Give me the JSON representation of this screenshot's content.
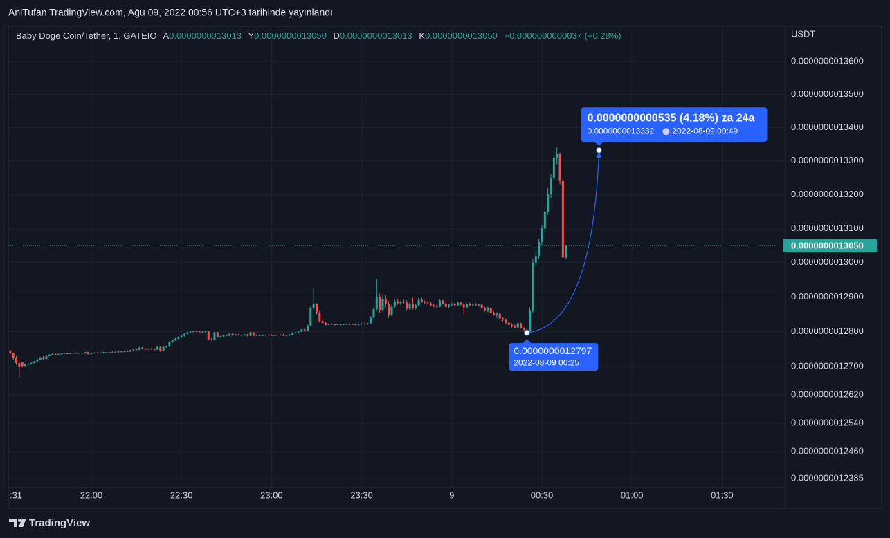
{
  "header": {
    "title": "AnlTufan TradingView.com, Ağu 09, 2022 00:56 UTC+3 tarihinde yayınlandı"
  },
  "legend": {
    "symbol": "Baby Doge Coin/Tether, 1, GATEIO",
    "ohlc": [
      {
        "key": "A",
        "value": "0.0000000013013"
      },
      {
        "key": "Y",
        "value": "0.0000000013050"
      },
      {
        "key": "D",
        "value": "0.0000000013013"
      },
      {
        "key": "K",
        "value": "0.0000000013050"
      }
    ],
    "change": "+0.0000000000037 (+0.28%)"
  },
  "footer": {
    "brand": "TradingView"
  },
  "chart_data": {
    "type": "candlestick",
    "y_unit": "USDT",
    "log_scale": true,
    "grid": true,
    "up_color": "#26a69a",
    "down_color": "#ef5350",
    "ylim": [
      1.236e-09,
      1.3708e-09
    ],
    "yticks": [
      {
        "value": 1.36e-09,
        "label": "0.0000000013600"
      },
      {
        "value": 1.35e-09,
        "label": "0.0000000013500"
      },
      {
        "value": 1.34e-09,
        "label": "0.0000000013400"
      },
      {
        "value": 1.33e-09,
        "label": "0.0000000013300"
      },
      {
        "value": 1.32e-09,
        "label": "0.0000000013200"
      },
      {
        "value": 1.31e-09,
        "label": "0.0000000013100"
      },
      {
        "value": 1.3e-09,
        "label": "0.0000000013000"
      },
      {
        "value": 1.29e-09,
        "label": "0.0000000012900"
      },
      {
        "value": 1.28e-09,
        "label": "0.0000000012800"
      },
      {
        "value": 1.27e-09,
        "label": "0.0000000012700"
      },
      {
        "value": 1.262e-09,
        "label": "0.0000000012620"
      },
      {
        "value": 1.254e-09,
        "label": "0.0000000012540"
      },
      {
        "value": 1.246e-09,
        "label": "0.0000000012460"
      },
      {
        "value": 1.2385e-09,
        "label": "0.0000000012385"
      }
    ],
    "xticks": [
      {
        "value": "21:31",
        "label": ":31"
      },
      "22:00",
      "22:30",
      "23:00",
      "23:30",
      {
        "value": "00:00",
        "label": "9"
      },
      "00:30",
      "01:00",
      "01:30"
    ],
    "last_price": {
      "value": 1.305e-09,
      "label": "0.0000000013050"
    },
    "annotation": {
      "change": "0.0000000000535 (4.18%) za 24a",
      "start": {
        "value": 1.2797e-09,
        "label": "0.0000000012797",
        "time": "2022-08-09 00:25"
      },
      "end": {
        "value": 1.3332e-09,
        "label": "0.0000000013332",
        "time": "2022-08-09  00:49"
      }
    },
    "x": [
      "21:33",
      "21:34",
      "21:35",
      "21:36",
      "21:37",
      "21:38",
      "21:39",
      "21:40",
      "21:41",
      "21:42",
      "21:43",
      "21:44",
      "21:45",
      "21:46",
      "21:47",
      "21:48",
      "21:49",
      "21:50",
      "21:51",
      "21:52",
      "21:53",
      "21:54",
      "21:55",
      "21:56",
      "21:57",
      "21:58",
      "21:59",
      "22:00",
      "22:01",
      "22:02",
      "22:03",
      "22:04",
      "22:05",
      "22:06",
      "22:07",
      "22:08",
      "22:09",
      "22:10",
      "22:11",
      "22:12",
      "22:13",
      "22:14",
      "22:15",
      "22:16",
      "22:17",
      "22:18",
      "22:19",
      "22:20",
      "22:21",
      "22:22",
      "22:23",
      "22:24",
      "22:25",
      "22:26",
      "22:27",
      "22:28",
      "22:29",
      "22:30",
      "22:31",
      "22:32",
      "22:33",
      "22:34",
      "22:35",
      "22:36",
      "22:37",
      "22:38",
      "22:39",
      "22:40",
      "22:41",
      "22:42",
      "22:43",
      "22:44",
      "22:45",
      "22:46",
      "22:47",
      "22:48",
      "22:49",
      "22:50",
      "22:51",
      "22:52",
      "22:53",
      "22:54",
      "22:55",
      "22:56",
      "22:57",
      "22:58",
      "22:59",
      "23:00",
      "23:01",
      "23:02",
      "23:03",
      "23:04",
      "23:05",
      "23:06",
      "23:07",
      "23:08",
      "23:09",
      "23:10",
      "23:11",
      "23:12",
      "23:13",
      "23:14",
      "23:15",
      "23:16",
      "23:17",
      "23:18",
      "23:19",
      "23:20",
      "23:21",
      "23:22",
      "23:23",
      "23:24",
      "23:25",
      "23:26",
      "23:27",
      "23:28",
      "23:29",
      "23:30",
      "23:31",
      "23:32",
      "23:33",
      "23:34",
      "23:35",
      "23:36",
      "23:37",
      "23:38",
      "23:39",
      "23:40",
      "23:41",
      "23:42",
      "23:43",
      "23:44",
      "23:45",
      "23:46",
      "23:47",
      "23:48",
      "23:49",
      "23:50",
      "23:51",
      "23:52",
      "23:53",
      "23:54",
      "23:55",
      "23:56",
      "23:57",
      "23:58",
      "23:59",
      "00:00",
      "00:01",
      "00:02",
      "00:03",
      "00:04",
      "00:05",
      "00:06",
      "00:07",
      "00:08",
      "00:09",
      "00:10",
      "00:11",
      "00:12",
      "00:13",
      "00:14",
      "00:15",
      "00:16",
      "00:17",
      "00:18",
      "00:19",
      "00:20",
      "00:21",
      "00:22",
      "00:23",
      "00:24",
      "00:25",
      "00:26",
      "00:27",
      "00:28",
      "00:29",
      "00:30",
      "00:31",
      "00:32",
      "00:33",
      "00:34",
      "00:35",
      "00:36",
      "00:37",
      "00:38"
    ],
    "open": [
      1.2745e-09,
      1.2738e-09,
      1.2725e-09,
      1.271e-09,
      1.2712e-09,
      1.2702e-09,
      1.2706e-09,
      1.2708e-09,
      1.271e-09,
      1.2715e-09,
      1.272e-09,
      1.2726e-09,
      1.2722e-09,
      1.273e-09,
      1.2734e-09,
      1.2736e-09,
      1.2735e-09,
      1.2736e-09,
      1.2737e-09,
      1.2738e-09,
      1.2737e-09,
      1.2738e-09,
      1.2739e-09,
      1.2738e-09,
      1.2739e-09,
      1.2738e-09,
      1.2741e-09,
      1.2736e-09,
      1.2739e-09,
      1.274e-09,
      1.2739e-09,
      1.274e-09,
      1.2741e-09,
      1.274e-09,
      1.2741e-09,
      1.2742e-09,
      1.2741e-09,
      1.2743e-09,
      1.2742e-09,
      1.2744e-09,
      1.2743e-09,
      1.2747e-09,
      1.2749e-09,
      1.2748e-09,
      1.2754e-09,
      1.2751e-09,
      1.275e-09,
      1.2751e-09,
      1.275e-09,
      1.2749e-09,
      1.2756e-09,
      1.2745e-09,
      1.2756e-09,
      1.2758e-09,
      1.277e-09,
      1.2776e-09,
      1.278e-09,
      1.2784e-09,
      1.2788e-09,
      1.2794e-09,
      1.2798e-09,
      1.28e-09,
      1.2801e-09,
      1.28e-09,
      1.2799e-09,
      1.28e-09,
      1.2801e-09,
      1.2778e-09,
      1.2776e-09,
      1.2798e-09,
      1.2785e-09,
      1.2786e-09,
      1.279e-09,
      1.2788e-09,
      1.2794e-09,
      1.279e-09,
      1.2792e-09,
      1.279e-09,
      1.2791e-09,
      1.2792e-09,
      1.2788e-09,
      1.2798e-09,
      1.2789e-09,
      1.279e-09,
      1.2789e-09,
      1.279e-09,
      1.2791e-09,
      1.279e-09,
      1.2789e-09,
      1.279e-09,
      1.2791e-09,
      1.279e-09,
      1.2788e-09,
      1.279e-09,
      1.2791e-09,
      1.2796e-09,
      1.2798e-09,
      1.28e-09,
      1.2806e-09,
      1.2802e-09,
      1.2818e-09,
      1.2868e-09,
      1.288e-09,
      1.2855e-09,
      1.283e-09,
      1.2825e-09,
      1.282e-09,
      1.2822e-09,
      1.282e-09,
      1.2821e-09,
      1.282e-09,
      1.2821e-09,
      1.2822e-09,
      1.2821e-09,
      1.2822e-09,
      1.2821e-09,
      1.282e-09,
      1.2822e-09,
      1.2823e-09,
      1.2822e-09,
      1.2824e-09,
      1.284e-09,
      1.2865e-09,
      1.29e-09,
      1.2862e-09,
      1.2895e-09,
      1.288e-09,
      1.2848e-09,
      1.2872e-09,
      1.2888e-09,
      1.2882e-09,
      1.2886e-09,
      1.2884e-09,
      1.2866e-09,
      1.288e-09,
      1.2868e-09,
      1.2876e-09,
      1.2892e-09,
      1.2887e-09,
      1.2884e-09,
      1.2882e-09,
      1.2876e-09,
      1.2874e-09,
      1.2872e-09,
      1.289e-09,
      1.288e-09,
      1.2872e-09,
      1.2878e-09,
      1.288e-09,
      1.2876e-09,
      1.2884e-09,
      1.2878e-09,
      1.287e-09,
      1.288e-09,
      1.2876e-09,
      1.2878e-09,
      1.2876e-09,
      1.2878e-09,
      1.2868e-09,
      1.286e-09,
      1.2868e-09,
      1.2854e-09,
      1.2848e-09,
      1.2852e-09,
      1.2838e-09,
      1.2834e-09,
      1.2826e-09,
      1.282e-09,
      1.2815e-09,
      1.2812e-09,
      1.2824e-09,
      1.281e-09,
      1.2806e-09,
      1.28e-09,
      1.286e-09,
      1.3e-09,
      1.302e-09,
      1.306e-09,
      1.31e-09,
      1.315e-09,
      1.32e-09,
      1.325e-09,
      1.331e-09,
      1.332e-09,
      1.324e-09,
      1.3013e-09
    ],
    "high": [
      1.2748e-09,
      1.274e-09,
      1.273e-09,
      1.2715e-09,
      1.2714e-09,
      1.2708e-09,
      1.271e-09,
      1.2712e-09,
      1.2716e-09,
      1.2722e-09,
      1.2728e-09,
      1.273e-09,
      1.2732e-09,
      1.2736e-09,
      1.2738e-09,
      1.2738e-09,
      1.2737e-09,
      1.2738e-09,
      1.2739e-09,
      1.274e-09,
      1.2739e-09,
      1.274e-09,
      1.2741e-09,
      1.274e-09,
      1.274e-09,
      1.2742e-09,
      1.2742e-09,
      1.274e-09,
      1.2741e-09,
      1.2741e-09,
      1.2741e-09,
      1.2742e-09,
      1.2742e-09,
      1.2742e-09,
      1.2743e-09,
      1.2743e-09,
      1.2744e-09,
      1.2745e-09,
      1.2745e-09,
      1.2746e-09,
      1.2748e-09,
      1.275e-09,
      1.2752e-09,
      1.2756e-09,
      1.2756e-09,
      1.2753e-09,
      1.2752e-09,
      1.2753e-09,
      1.2752e-09,
      1.2758e-09,
      1.2758e-09,
      1.2758e-09,
      1.276e-09,
      1.2772e-09,
      1.2778e-09,
      1.2782e-09,
      1.2786e-09,
      1.279e-09,
      1.2796e-09,
      1.28e-09,
      1.2802e-09,
      1.2802e-09,
      1.2803e-09,
      1.2802e-09,
      1.2801e-09,
      1.2802e-09,
      1.2802e-09,
      1.2781e-09,
      1.28e-09,
      1.28e-09,
      1.2788e-09,
      1.2792e-09,
      1.2792e-09,
      1.2795e-09,
      1.2796e-09,
      1.2793e-09,
      1.2794e-09,
      1.2792e-09,
      1.2793e-09,
      1.2794e-09,
      1.28e-09,
      1.2799e-09,
      1.2792e-09,
      1.2792e-09,
      1.2791e-09,
      1.2792e-09,
      1.2793e-09,
      1.2792e-09,
      1.2791e-09,
      1.2792e-09,
      1.2793e-09,
      1.2795e-09,
      1.2791e-09,
      1.2793e-09,
      1.2798e-09,
      1.28e-09,
      1.2802e-09,
      1.2808e-09,
      1.281e-09,
      1.282e-09,
      1.2872e-09,
      1.2925e-09,
      1.2882e-09,
      1.286e-09,
      1.2834e-09,
      1.2828e-09,
      1.2824e-09,
      1.2824e-09,
      1.2822e-09,
      1.2823e-09,
      1.2822e-09,
      1.2823e-09,
      1.2824e-09,
      1.2823e-09,
      1.2824e-09,
      1.2823e-09,
      1.2823e-09,
      1.2825e-09,
      1.2826e-09,
      1.2825e-09,
      1.2845e-09,
      1.287e-09,
      1.2952e-09,
      1.291e-09,
      1.2905e-09,
      1.2905e-09,
      1.2888e-09,
      1.2878e-09,
      1.2892e-09,
      1.2895e-09,
      1.289e-09,
      1.2892e-09,
      1.289e-09,
      1.2885e-09,
      1.2898e-09,
      1.288e-09,
      1.29e-09,
      1.2898e-09,
      1.289e-09,
      1.2888e-09,
      1.2886e-09,
      1.288e-09,
      1.2878e-09,
      1.2895e-09,
      1.2892e-09,
      1.2884e-09,
      1.288e-09,
      1.2884e-09,
      1.2884e-09,
      1.2886e-09,
      1.2886e-09,
      1.2882e-09,
      1.2882e-09,
      1.2884e-09,
      1.288e-09,
      1.2882e-09,
      1.288e-09,
      1.288e-09,
      1.2872e-09,
      1.2872e-09,
      1.287e-09,
      1.2858e-09,
      1.2856e-09,
      1.2854e-09,
      1.2842e-09,
      1.2838e-09,
      1.283e-09,
      1.2824e-09,
      1.282e-09,
      1.2828e-09,
      1.2826e-09,
      1.2814e-09,
      1.281e-09,
      1.287e-09,
      1.301e-09,
      1.304e-09,
      1.307e-09,
      1.311e-09,
      1.316e-09,
      1.322e-09,
      1.326e-09,
      1.332e-09,
      1.334e-09,
      1.3325e-09,
      1.3245e-09,
      1.305e-09
    ],
    "low": [
      1.2735e-09,
      1.272e-09,
      1.2705e-09,
      1.267e-09,
      1.2698e-09,
      1.27e-09,
      1.2704e-09,
      1.2706e-09,
      1.2709e-09,
      1.2714e-09,
      1.2718e-09,
      1.272e-09,
      1.2721e-09,
      1.2729e-09,
      1.2732e-09,
      1.2734e-09,
      1.2733e-09,
      1.2735e-09,
      1.2736e-09,
      1.2736e-09,
      1.2736e-09,
      1.2737e-09,
      1.2737e-09,
      1.2737e-09,
      1.2737e-09,
      1.2737e-09,
      1.2734e-09,
      1.2735e-09,
      1.2738e-09,
      1.2738e-09,
      1.2738e-09,
      1.2739e-09,
      1.2739e-09,
      1.2739e-09,
      1.274e-09,
      1.274e-09,
      1.274e-09,
      1.2741e-09,
      1.2741e-09,
      1.2742e-09,
      1.2742e-09,
      1.2745e-09,
      1.2747e-09,
      1.2747e-09,
      1.275e-09,
      1.2748e-09,
      1.2748e-09,
      1.2749e-09,
      1.2747e-09,
      1.2748e-09,
      1.2742e-09,
      1.2744e-09,
      1.2754e-09,
      1.2756e-09,
      1.2768e-09,
      1.2774e-09,
      1.2778e-09,
      1.2782e-09,
      1.2786e-09,
      1.2792e-09,
      1.2796e-09,
      1.2798e-09,
      1.2799e-09,
      1.2798e-09,
      1.2796e-09,
      1.2798e-09,
      1.2775e-09,
      1.2774e-09,
      1.2775e-09,
      1.2783e-09,
      1.2782e-09,
      1.2784e-09,
      1.2786e-09,
      1.2787e-09,
      1.2788e-09,
      1.2788e-09,
      1.2789e-09,
      1.2787e-09,
      1.2789e-09,
      1.2786e-09,
      1.2787e-09,
      1.2787e-09,
      1.2787e-09,
      1.2788e-09,
      1.2787e-09,
      1.2788e-09,
      1.2789e-09,
      1.2788e-09,
      1.2787e-09,
      1.2788e-09,
      1.2789e-09,
      1.2787e-09,
      1.2786e-09,
      1.2788e-09,
      1.279e-09,
      1.2794e-09,
      1.2796e-09,
      1.2799e-09,
      1.28e-09,
      1.2801e-09,
      1.2816e-09,
      1.2862e-09,
      1.285e-09,
      1.2826e-09,
      1.2822e-09,
      1.2818e-09,
      1.2818e-09,
      1.2819e-09,
      1.2818e-09,
      1.2819e-09,
      1.2818e-09,
      1.2819e-09,
      1.282e-09,
      1.2819e-09,
      1.282e-09,
      1.2818e-09,
      1.2818e-09,
      1.282e-09,
      1.282e-09,
      1.282e-09,
      1.2823e-09,
      1.2838e-09,
      1.286e-09,
      1.2855e-09,
      1.2858e-09,
      1.287e-09,
      1.284e-09,
      1.2845e-09,
      1.2868e-09,
      1.2878e-09,
      1.2876e-09,
      1.288e-09,
      1.286e-09,
      1.2862e-09,
      1.2862e-09,
      1.2864e-09,
      1.2874e-09,
      1.2884e-09,
      1.288e-09,
      1.2878e-09,
      1.2874e-09,
      1.287e-09,
      1.2868e-09,
      1.287e-09,
      1.2878e-09,
      1.287e-09,
      1.2868e-09,
      1.2874e-09,
      1.2874e-09,
      1.2874e-09,
      1.2876e-09,
      1.285e-09,
      1.2868e-09,
      1.2874e-09,
      1.2872e-09,
      1.2874e-09,
      1.2872e-09,
      1.2866e-09,
      1.2858e-09,
      1.2856e-09,
      1.2852e-09,
      1.2846e-09,
      1.284e-09,
      1.2836e-09,
      1.283e-09,
      1.2822e-09,
      1.2818e-09,
      1.2812e-09,
      1.281e-09,
      1.281e-09,
      1.2808e-09,
      1.2802e-09,
      1.2797e-09,
      1.2799e-09,
      1.2855e-09,
      1.299e-09,
      1.301e-09,
      1.305e-09,
      1.309e-09,
      1.314e-09,
      1.319e-09,
      1.324e-09,
      1.329e-09,
      1.323e-09,
      1.301e-09,
      1.3013e-09
    ],
    "close": [
      1.2738e-09,
      1.2725e-09,
      1.271e-09,
      1.27e-09,
      1.2702e-09,
      1.2706e-09,
      1.2708e-09,
      1.271e-09,
      1.2715e-09,
      1.272e-09,
      1.2726e-09,
      1.2722e-09,
      1.273e-09,
      1.2734e-09,
      1.2736e-09,
      1.2735e-09,
      1.2736e-09,
      1.2737e-09,
      1.2738e-09,
      1.2737e-09,
      1.2738e-09,
      1.2739e-09,
      1.2738e-09,
      1.2739e-09,
      1.2738e-09,
      1.2741e-09,
      1.2736e-09,
      1.2739e-09,
      1.274e-09,
      1.2739e-09,
      1.274e-09,
      1.2741e-09,
      1.274e-09,
      1.2741e-09,
      1.2742e-09,
      1.2741e-09,
      1.2743e-09,
      1.2742e-09,
      1.2744e-09,
      1.2743e-09,
      1.2747e-09,
      1.2749e-09,
      1.2748e-09,
      1.2754e-09,
      1.2751e-09,
      1.275e-09,
      1.2751e-09,
      1.275e-09,
      1.2749e-09,
      1.2756e-09,
      1.2745e-09,
      1.2756e-09,
      1.2758e-09,
      1.277e-09,
      1.2776e-09,
      1.278e-09,
      1.2784e-09,
      1.2788e-09,
      1.2794e-09,
      1.2798e-09,
      1.28e-09,
      1.2801e-09,
      1.28e-09,
      1.2799e-09,
      1.28e-09,
      1.2801e-09,
      1.2778e-09,
      1.2776e-09,
      1.2798e-09,
      1.2785e-09,
      1.2786e-09,
      1.279e-09,
      1.2788e-09,
      1.2794e-09,
      1.279e-09,
      1.2792e-09,
      1.279e-09,
      1.2791e-09,
      1.2792e-09,
      1.2788e-09,
      1.2798e-09,
      1.2789e-09,
      1.279e-09,
      1.2789e-09,
      1.279e-09,
      1.2791e-09,
      1.279e-09,
      1.2789e-09,
      1.279e-09,
      1.2791e-09,
      1.279e-09,
      1.2788e-09,
      1.279e-09,
      1.2791e-09,
      1.2796e-09,
      1.2798e-09,
      1.28e-09,
      1.2806e-09,
      1.2802e-09,
      1.2818e-09,
      1.2868e-09,
      1.288e-09,
      1.2855e-09,
      1.283e-09,
      1.2825e-09,
      1.282e-09,
      1.2822e-09,
      1.282e-09,
      1.2821e-09,
      1.282e-09,
      1.2821e-09,
      1.2822e-09,
      1.2821e-09,
      1.2822e-09,
      1.2821e-09,
      1.282e-09,
      1.2822e-09,
      1.2823e-09,
      1.2822e-09,
      1.2824e-09,
      1.284e-09,
      1.2865e-09,
      1.29e-09,
      1.2862e-09,
      1.2895e-09,
      1.288e-09,
      1.2848e-09,
      1.2872e-09,
      1.2888e-09,
      1.2882e-09,
      1.2886e-09,
      1.2884e-09,
      1.2866e-09,
      1.288e-09,
      1.2868e-09,
      1.2876e-09,
      1.2892e-09,
      1.2887e-09,
      1.2884e-09,
      1.2882e-09,
      1.2876e-09,
      1.2874e-09,
      1.2872e-09,
      1.289e-09,
      1.288e-09,
      1.2872e-09,
      1.2878e-09,
      1.288e-09,
      1.2876e-09,
      1.2884e-09,
      1.2878e-09,
      1.287e-09,
      1.288e-09,
      1.2876e-09,
      1.2878e-09,
      1.2876e-09,
      1.2878e-09,
      1.2868e-09,
      1.286e-09,
      1.2868e-09,
      1.2854e-09,
      1.2848e-09,
      1.2852e-09,
      1.2838e-09,
      1.2834e-09,
      1.2826e-09,
      1.282e-09,
      1.2815e-09,
      1.2812e-09,
      1.2824e-09,
      1.281e-09,
      1.2806e-09,
      1.28e-09,
      1.286e-09,
      1.3e-09,
      1.302e-09,
      1.306e-09,
      1.31e-09,
      1.315e-09,
      1.32e-09,
      1.325e-09,
      1.331e-09,
      1.332e-09,
      1.324e-09,
      1.3015e-09,
      1.305e-09
    ]
  }
}
